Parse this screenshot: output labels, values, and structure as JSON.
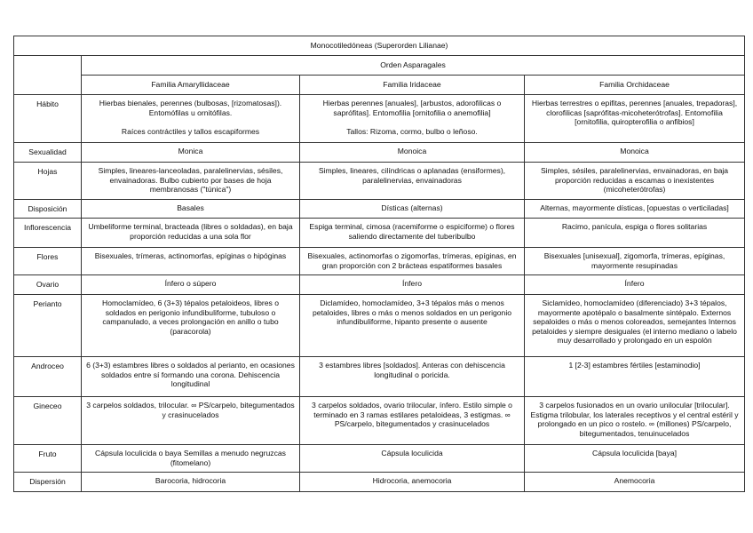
{
  "title": "Monocotiledóneas (Superorden Lilianae)",
  "order": "Orden Asparagales",
  "families": [
    "Familia Amaryllidaceae",
    "Familia Iridaceae",
    "Familia Orchidaceae"
  ],
  "rows": [
    {
      "label": "Hábito",
      "cells": [
        "Hierbas bienales, perennes (bulbosas, [rizomatosas]). Entomófilas u ornitófilas.\n\nRaíces contráctiles y tallos escapiformes",
        "Hierbas perennes [anuales], [arbustos, adorofilicas o saprófitas]. Entomofilia [ornitofilia o anemofilia]\n\nTallos: Rizoma, cormo, bulbo o leñoso.",
        "Hierbas terrestres o epifitas, perennes [anuales, trepadoras], clorofilicas [saprófitas-micoheterótrofas]. Entomofilia [ornitofilia, quiropterofilia o anfibios]"
      ]
    },
    {
      "label": "Sexualidad",
      "cells": [
        "Monica",
        "Monoica",
        "Monoica"
      ]
    },
    {
      "label": "Hojas",
      "cells": [
        "Simples, lineares-lanceoladas, paralelinervias, sésiles, envainadoras. Bulbo cubierto por bases de hoja membranosas (\"túnica\")",
        "Simples, lineares, cilíndricas o aplanadas (ensiformes), paralelinervias, envainadoras",
        "Simples, sésiles, paralelinervias, envainadoras, en baja proporción reducidas a escamas o inexistentes (micoheterótrofas)"
      ]
    },
    {
      "label": "Disposición",
      "cells": [
        "Basales",
        "Dísticas (alternas)",
        "Alternas, mayormente dísticas, [opuestas o verticiladas]"
      ]
    },
    {
      "label": "Inflorescencia",
      "cells": [
        "Umbeliforme terminal, bracteada (libres o soldadas), en baja proporción reducidas a una sola flor",
        "Espiga terminal, cimosa (racemiforme o espiciforme) o flores saliendo directamente del tuberibulbo",
        "Racimo, panícula, espiga o flores solitarias"
      ]
    },
    {
      "label": "Flores",
      "cells": [
        "Bisexuales, trímeras, actinomorfas, epíginas o hipóginas",
        "Bisexuales, actinomorfas o zigomorfas, trímeras, epíginas, en gran proporción con 2 brácteas espatiformes basales",
        "Bisexuales [unisexual], zigomorfa, trímeras, epíginas, mayormente resupinadas"
      ]
    },
    {
      "label": "Ovario",
      "cells": [
        "Ínfero o súpero",
        "Ínfero",
        "Ínfero"
      ]
    },
    {
      "label": "Perianto",
      "cells": [
        "Homoclamídeo, 6 (3+3) tépalos petaloideos, libres o soldados en perigonio infundibuliforme, tubuloso o campanulado, a veces prolongación en anillo o tubo (paracorola)",
        "Diclamídeo, homoclamídeo, 3+3 tépalos más o menos petaloides, libres o más o menos soldados en un perigonio infundibuliforme, hipanto presente o ausente",
        "Siclamídeo, homoclamídeo (diferenciado) 3+3 tépalos, mayormente apotépalo o basalmente sintépalo. Externos sepaloides o más o menos coloreados, semejantes Internos petaloides y siempre desiguales (el interno mediano o labelo muy desarrollado y prolongado en un espolón"
      ]
    },
    {
      "label": "Androceo",
      "cells": [
        "6 (3+3) estambres libres o soldados al perianto, en ocasiones soldados entre sí formando una corona. Dehiscencia longitudinal",
        "3 estambres libres [soldados]. Anteras con dehiscencia longitudinal o poricida.",
        "1 [2-3] estambres fértiles [estaminodio]"
      ]
    },
    {
      "label": "Gineceo",
      "cells": [
        "3 carpelos soldados, trilocular. ∞ PS/carpelo, bitegumentados y crasinucelados",
        "3 carpelos soldados, ovario trilocular, ínfero. Estilo simple o terminado en 3 ramas estilares petaloideas, 3 estigmas. ∞ PS/carpelo, bitegumentados y crasinucelados",
        "3 carpelos fusionados en un ovario unilocular [trilocular]. Estigma trilobular, los laterales receptivos y el central estéril y prolongado en un pico o rostelo. ∞ (millones) PS/carpelo, bitegumentados, tenuinucelados"
      ]
    },
    {
      "label": "Fruto",
      "cells": [
        "Cápsula loculicida o baya Semillas a menudo negruzcas (fitomelano)",
        "Cápsula loculicida",
        "Cápsula loculicida [baya]"
      ]
    },
    {
      "label": "Dispersión",
      "cells": [
        "Barocoria, hidrocoria",
        "Hidrocoria, anemocoria",
        "Anemocoria"
      ]
    }
  ]
}
